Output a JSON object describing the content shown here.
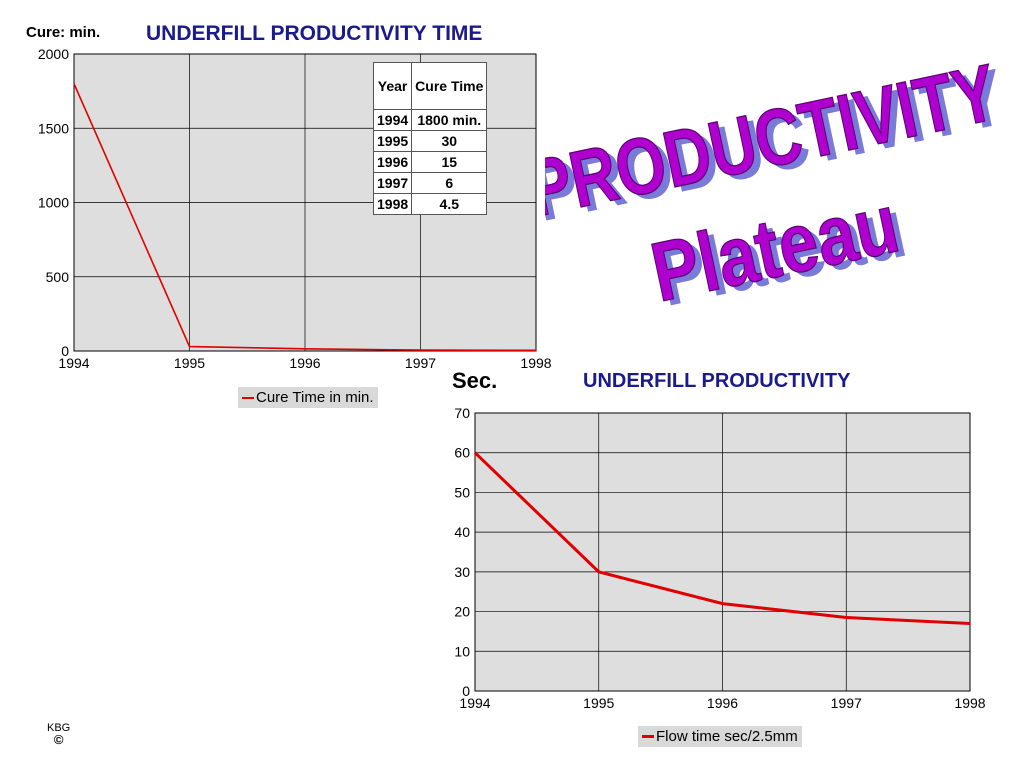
{
  "chart_data": [
    {
      "type": "line",
      "title": "UNDERFILL PRODUCTIVITY TIME",
      "ylabel": "Cure: min.",
      "x": [
        1994,
        1995,
        1996,
        1997,
        1998
      ],
      "series": [
        {
          "name": "Cure Time in min.",
          "values": [
            1800,
            30,
            15,
            6,
            4.5
          ],
          "color": "#e00000"
        }
      ],
      "xlim": [
        1994,
        1998
      ],
      "ylim": [
        0,
        2000
      ],
      "yticks": [
        0,
        500,
        1000,
        1500,
        2000
      ],
      "grid": true,
      "legend": "bottom"
    },
    {
      "type": "line",
      "title": "UNDERFILL PRODUCTIVITY",
      "ylabel": "Sec.",
      "x": [
        1994,
        1995,
        1996,
        1997,
        1998
      ],
      "series": [
        {
          "name": "Flow time sec/2.5mm",
          "values": [
            60,
            30,
            22,
            18.5,
            17
          ],
          "color": "#e00000"
        }
      ],
      "xlim": [
        1994,
        1998
      ],
      "ylim": [
        0,
        70
      ],
      "yticks": [
        0,
        10,
        20,
        30,
        40,
        50,
        60,
        70
      ],
      "grid": true,
      "legend": "bottom"
    }
  ],
  "table": {
    "headers": [
      "Year",
      "Cure Time"
    ],
    "rows": [
      [
        "1994",
        "1800 min."
      ],
      [
        "1995",
        "30"
      ],
      [
        "1996",
        "15"
      ],
      [
        "1997",
        "6"
      ],
      [
        "1998",
        "4.5"
      ]
    ]
  },
  "wordart": {
    "line1": "PRODUCTIVITY",
    "line2": "Plateau",
    "fill": "#b000d0",
    "shadow": "#7a7ad8"
  },
  "credit": {
    "initials": "KBG",
    "symbol": "©"
  },
  "colors": {
    "title": "#1a1a8c",
    "plot_bg": "#dedede",
    "series": "#e00000"
  }
}
